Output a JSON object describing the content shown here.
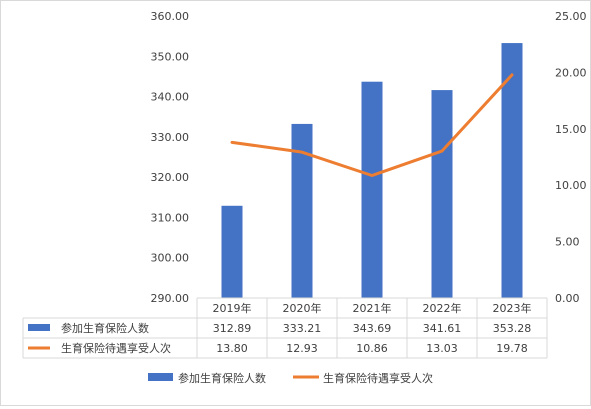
{
  "chart_data": {
    "type": "bar",
    "categories": [
      "2019年",
      "2020年",
      "2021年",
      "2022年",
      "2023年"
    ],
    "series": [
      {
        "name": "参加生育保险人数",
        "type": "bar",
        "axis": "left",
        "color": "#4472C4",
        "values": [
          312.89,
          333.21,
          343.69,
          341.61,
          353.28
        ],
        "labels": [
          "312.89",
          "333.21",
          "343.69",
          "341.61",
          "353.28"
        ]
      },
      {
        "name": "生育保险待遇享受人次",
        "type": "line",
        "axis": "right",
        "color": "#ED7D31",
        "values": [
          13.8,
          12.93,
          10.86,
          13.03,
          19.78
        ],
        "labels": [
          "13.80",
          "12.93",
          "10.86",
          "13.03",
          "19.78"
        ]
      }
    ],
    "y_left": {
      "ylim": [
        290,
        360
      ],
      "ticks": [
        "290.00",
        "300.00",
        "310.00",
        "320.00",
        "330.00",
        "340.00",
        "350.00",
        "360.00"
      ]
    },
    "y_right": {
      "ylim": [
        0,
        25
      ],
      "ticks": [
        "0.00",
        "5.00",
        "10.00",
        "15.00",
        "20.00",
        "25.00"
      ]
    },
    "grid": false,
    "data_table": true,
    "legend": "bottom"
  }
}
